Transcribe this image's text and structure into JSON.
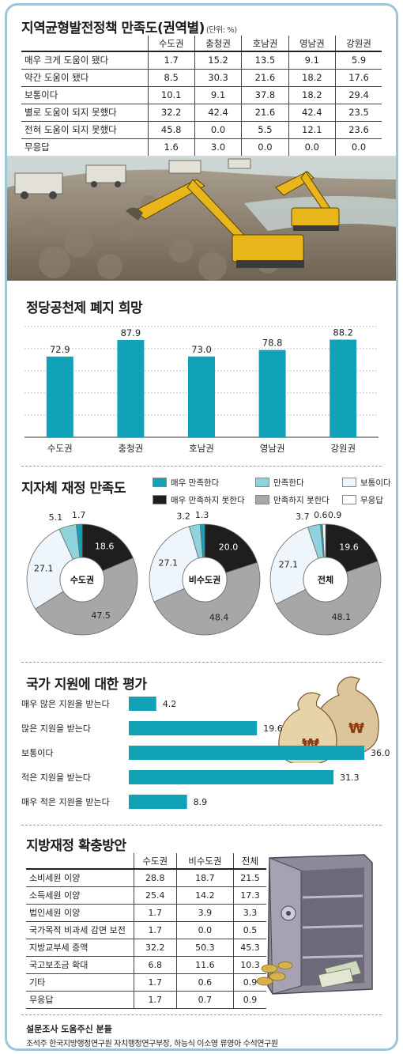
{
  "colors": {
    "very_satisfied": "#12a2b8",
    "satisfied": "#8fd3dd",
    "neutral": "#eef6fb",
    "very_unsatisfied": "#1e1e1e",
    "unsatisfied": "#a7a7a7",
    "no_answer": "#ffffff",
    "bar": "#12a2b8",
    "frame": "#9cc6d6"
  },
  "section1": {
    "title": "지역균형발전정책 만족도(권역별)",
    "unit": "(단위: %)",
    "columns": [
      "수도권",
      "충청권",
      "호남권",
      "영남권",
      "강원권"
    ],
    "rows": [
      {
        "label": "매우 크게 도움이 됐다",
        "values": [
          "1.7",
          "15.2",
          "13.5",
          "9.1",
          "5.9"
        ]
      },
      {
        "label": "약간 도움이 됐다",
        "values": [
          "8.5",
          "30.3",
          "21.6",
          "18.2",
          "17.6"
        ]
      },
      {
        "label": "보통이다",
        "values": [
          "10.1",
          "9.1",
          "37.8",
          "18.2",
          "29.4"
        ]
      },
      {
        "label": "별로 도움이 되지 못했다",
        "values": [
          "32.2",
          "42.4",
          "21.6",
          "42.4",
          "23.5"
        ]
      },
      {
        "label": "전혀 도움이 되지 못했다",
        "values": [
          "45.8",
          "0.0",
          "5.5",
          "12.1",
          "23.6"
        ]
      },
      {
        "label": "무응답",
        "values": [
          "1.6",
          "3.0",
          "0.0",
          "0.0",
          "0.0"
        ]
      }
    ]
  },
  "section2": {
    "title": "정당공천제 폐지 희망",
    "categories": [
      "수도권",
      "충청권",
      "호남권",
      "영남권",
      "강원권"
    ],
    "value_labels": [
      "72.9",
      "87.9",
      "73.0",
      "78.8",
      "88.2"
    ]
  },
  "section3": {
    "title": "지자체 재정 만족도",
    "legend": [
      "매우 만족한다",
      "만족한다",
      "보통이다",
      "매우 만족하지 못한다",
      "만족하지 못한다",
      "무응답"
    ],
    "donuts": [
      {
        "center": "수도권",
        "labels": {
          "very": "1.7",
          "sat": "5.1",
          "neutral": "27.1",
          "vunsat": "18.6",
          "unsat": "47.5"
        }
      },
      {
        "center": "비수도권",
        "labels": {
          "very": "1.3",
          "sat": "3.2",
          "neutral": "27.1",
          "vunsat": "20.0",
          "unsat": "48.4"
        }
      },
      {
        "center": "전체",
        "labels": {
          "very": "0.6",
          "noans": "0.9",
          "sat": "3.7",
          "neutral": "27.1",
          "vunsat": "19.6",
          "unsat": "48.1"
        }
      }
    ]
  },
  "section4": {
    "title": "국가 지원에 대한 평가",
    "categories": [
      "매우 많은 지원을 받는다",
      "많은 지원을 받는다",
      "보통이다",
      "적은 지원을 받는다",
      "매우 적은 지원을 받는다"
    ],
    "value_labels": [
      "4.2",
      "19.6",
      "36.0",
      "31.3",
      "8.9"
    ]
  },
  "section5": {
    "title": "지방재정 확충방안",
    "columns": [
      "수도권",
      "비수도권",
      "전체"
    ],
    "rows": [
      {
        "label": "소비세원 이양",
        "values": [
          "28.8",
          "18.7",
          "21.5"
        ]
      },
      {
        "label": "소득세원 이양",
        "values": [
          "25.4",
          "14.2",
          "17.3"
        ]
      },
      {
        "label": "법인세원 이양",
        "values": [
          "1.7",
          "3.9",
          "3.3"
        ]
      },
      {
        "label": "국가목적 비과세 감면 보전",
        "values": [
          "1.7",
          "0.0",
          "0.5"
        ]
      },
      {
        "label": "지방교부세 증액",
        "values": [
          "32.2",
          "50.3",
          "45.3"
        ]
      },
      {
        "label": "국고보조금 확대",
        "values": [
          "6.8",
          "11.6",
          "10.3"
        ]
      },
      {
        "label": "기타",
        "values": [
          "1.7",
          "0.6",
          "0.9"
        ]
      },
      {
        "label": "무응답",
        "values": [
          "1.7",
          "0.7",
          "0.9"
        ]
      }
    ]
  },
  "footer": {
    "title": "설문조사 도움주신 분들",
    "text": "조석주 한국지방행정연구원 자치행정연구부장, 하능식 이소영 류영아 수석연구원"
  },
  "chart_data": [
    {
      "type": "table",
      "title": "지역균형발전정책 만족도(권역별)",
      "unit": "(단위: %)",
      "columns": [
        "수도권",
        "충청권",
        "호남권",
        "영남권",
        "강원권"
      ],
      "rows": [
        "매우 크게 도움이 됐다",
        "약간 도움이 됐다",
        "보통이다",
        "별로 도움이 되지 못했다",
        "전혀 도움이 되지 못했다",
        "무응답"
      ],
      "values": [
        [
          1.7,
          15.2,
          13.5,
          9.1,
          5.9
        ],
        [
          8.5,
          30.3,
          21.6,
          18.2,
          17.6
        ],
        [
          10.1,
          9.1,
          37.8,
          18.2,
          29.4
        ],
        [
          32.2,
          42.4,
          21.6,
          42.4,
          23.5
        ],
        [
          45.8,
          0.0,
          5.5,
          12.1,
          23.6
        ],
        [
          1.6,
          3.0,
          0.0,
          0.0,
          0.0
        ]
      ]
    },
    {
      "type": "bar",
      "title": "정당공천제 폐지 희망",
      "categories": [
        "수도권",
        "충청권",
        "호남권",
        "영남권",
        "강원권"
      ],
      "values": [
        72.9,
        87.9,
        73.0,
        78.8,
        88.2
      ],
      "ylim": [
        0,
        100
      ],
      "grid": true
    },
    {
      "type": "pie",
      "title": "지자체 재정 만족도",
      "donut": true,
      "series_names": [
        "매우 만족한다",
        "만족한다",
        "보통이다",
        "매우 만족하지 못한다",
        "만족하지 못한다",
        "무응답"
      ],
      "charts": [
        {
          "name": "수도권",
          "values": [
            1.7,
            5.1,
            27.1,
            18.6,
            47.5,
            0
          ]
        },
        {
          "name": "비수도권",
          "values": [
            1.3,
            3.2,
            27.1,
            20.0,
            48.4,
            0
          ]
        },
        {
          "name": "전체",
          "values": [
            0.6,
            3.7,
            27.1,
            19.6,
            48.1,
            0.9
          ]
        }
      ],
      "legend": "top-right"
    },
    {
      "type": "bar",
      "orientation": "horizontal",
      "title": "국가 지원에 대한 평가",
      "categories": [
        "매우 많은 지원을 받는다",
        "많은 지원을 받는다",
        "보통이다",
        "적은 지원을 받는다",
        "매우 적은 지원을 받는다"
      ],
      "values": [
        4.2,
        19.6,
        36.0,
        31.3,
        8.9
      ],
      "xlim": [
        0,
        36
      ]
    },
    {
      "type": "table",
      "title": "지방재정 확충방안",
      "columns": [
        "수도권",
        "비수도권",
        "전체"
      ],
      "rows": [
        "소비세원 이양",
        "소득세원 이양",
        "법인세원 이양",
        "국가목적 비과세 감면 보전",
        "지방교부세 증액",
        "국고보조금 확대",
        "기타",
        "무응답"
      ],
      "values": [
        [
          28.8,
          18.7,
          21.5
        ],
        [
          25.4,
          14.2,
          17.3
        ],
        [
          1.7,
          3.9,
          3.3
        ],
        [
          1.7,
          0.0,
          0.5
        ],
        [
          32.2,
          50.3,
          45.3
        ],
        [
          6.8,
          11.6,
          10.3
        ],
        [
          1.7,
          0.6,
          0.9
        ],
        [
          1.7,
          0.7,
          0.9
        ]
      ]
    }
  ]
}
